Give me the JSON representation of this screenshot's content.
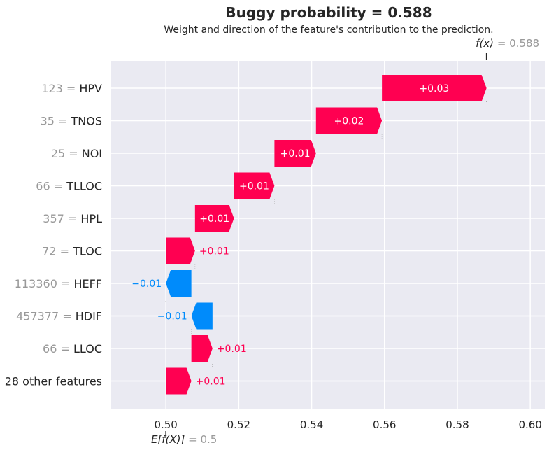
{
  "chart_data": {
    "type": "waterfall",
    "title": "Buggy probability = 0.588",
    "subtitle": "Weight and direction of the feature's contribution to the prediction.",
    "xlim": [
      0.485,
      0.604
    ],
    "xticks": [
      "0.50",
      "0.52",
      "0.54",
      "0.56",
      "0.58",
      "0.60"
    ],
    "xtick_values": [
      0.5,
      0.52,
      0.54,
      0.56,
      0.58,
      0.6
    ],
    "grid": true,
    "base_value": 0.5,
    "base_label_fn": "E[f(X)]",
    "base_label_value": "= 0.5",
    "final_value": 0.588,
    "final_label_fn": "f(x)",
    "final_label_value": "= 0.588",
    "colors": {
      "positive": "#ff0051",
      "negative": "#008bfb",
      "background": "#eaeaf2",
      "grid": "#ffffff"
    },
    "features": [
      {
        "value": "123",
        "name": "HPV",
        "start": 0.5593,
        "end": 0.588,
        "label": "+0.03"
      },
      {
        "value": "35",
        "name": "TNOS",
        "start": 0.5412,
        "end": 0.5593,
        "label": "+0.02"
      },
      {
        "value": "25",
        "name": "NOI",
        "start": 0.5298,
        "end": 0.5412,
        "label": "+0.01"
      },
      {
        "value": "66",
        "name": "TLLOC",
        "start": 0.5187,
        "end": 0.5298,
        "label": "+0.01"
      },
      {
        "value": "357",
        "name": "HPL",
        "start": 0.508,
        "end": 0.5187,
        "label": "+0.01"
      },
      {
        "value": "72",
        "name": "TLOC",
        "start": 0.5,
        "end": 0.508,
        "label": "+0.01"
      },
      {
        "value": "113360",
        "name": "HEFF",
        "start": 0.507,
        "end": 0.5,
        "label": "−0.01"
      },
      {
        "value": "457377",
        "name": "HDIF",
        "start": 0.5128,
        "end": 0.507,
        "label": "−0.01"
      },
      {
        "value": "66",
        "name": "LLOC",
        "start": 0.507,
        "end": 0.5128,
        "label": "+0.01"
      },
      {
        "value": "",
        "name": "28 other features",
        "start": 0.5,
        "end": 0.507,
        "label": "+0.01"
      }
    ]
  }
}
